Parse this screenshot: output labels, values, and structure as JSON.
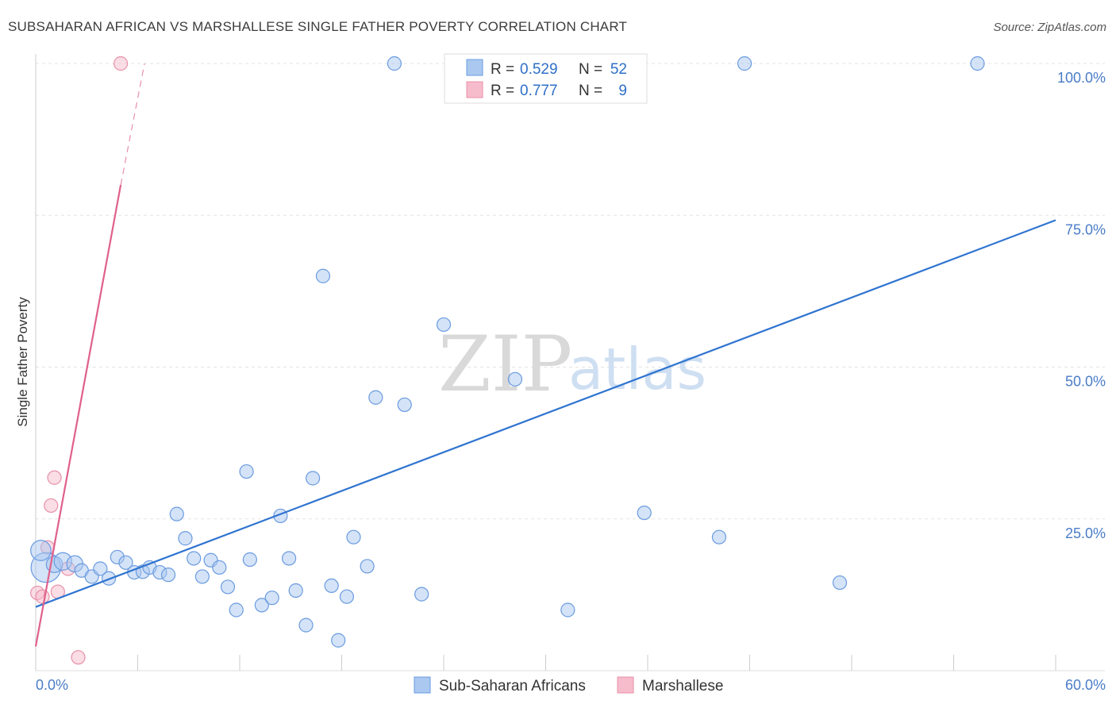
{
  "chart_data": {
    "type": "scatter",
    "title": "SUBSAHARAN AFRICAN VS MARSHALLESE SINGLE FATHER POVERTY CORRELATION CHART",
    "source": "Source: ZipAtlas.com",
    "ylabel": "Single Father Poverty",
    "xlim": [
      0,
      60
    ],
    "ylim": [
      0,
      100
    ],
    "x_tick_labels": [
      "0.0%",
      "60.0%"
    ],
    "y_ticks": [
      25,
      50,
      75,
      100
    ],
    "y_tick_labels": [
      "25.0%",
      "50.0%",
      "75.0%",
      "100.0%"
    ],
    "watermark": {
      "zip": "ZIP",
      "atlas": "atlas"
    },
    "legend": [
      {
        "name": "Sub-Saharan Africans",
        "r_label": "R =",
        "r": "0.529",
        "n_label": "N =",
        "n": "52"
      },
      {
        "name": "Marshallese",
        "r_label": "R =",
        "r": "0.777",
        "n_label": "N =",
        "n": "9"
      }
    ],
    "colors": {
      "blue_fill": "#aac8f0",
      "blue_stroke": "#6a9be0",
      "blue_line": "#2f74d0",
      "pink_fill": "#f6bccb",
      "pink_stroke": "#e890a8",
      "pink_line": "#e0608c"
    },
    "series": [
      {
        "name": "Sub-Saharan Africans",
        "points": [
          {
            "x": 0.6,
            "y": 17,
            "s": 2.2
          },
          {
            "x": 1.1,
            "y": 17.5,
            "s": 1.2
          },
          {
            "x": 1.6,
            "y": 18,
            "s": 1.3
          },
          {
            "x": 2.3,
            "y": 17.6,
            "s": 1.2
          },
          {
            "x": 2.7,
            "y": 16.5
          },
          {
            "x": 3.3,
            "y": 15.5
          },
          {
            "x": 3.8,
            "y": 16.8
          },
          {
            "x": 4.3,
            "y": 15.2
          },
          {
            "x": 4.8,
            "y": 18.7
          },
          {
            "x": 5.3,
            "y": 17.8
          },
          {
            "x": 5.8,
            "y": 16.2
          },
          {
            "x": 6.3,
            "y": 16.3
          },
          {
            "x": 6.7,
            "y": 17
          },
          {
            "x": 7.3,
            "y": 16.2
          },
          {
            "x": 7.8,
            "y": 15.8
          },
          {
            "x": 8.3,
            "y": 25.8
          },
          {
            "x": 8.8,
            "y": 21.8
          },
          {
            "x": 9.3,
            "y": 18.5
          },
          {
            "x": 9.8,
            "y": 15.5
          },
          {
            "x": 10.3,
            "y": 18.2
          },
          {
            "x": 10.8,
            "y": 17
          },
          {
            "x": 11.3,
            "y": 13.8
          },
          {
            "x": 11.8,
            "y": 10
          },
          {
            "x": 12.4,
            "y": 32.8
          },
          {
            "x": 12.6,
            "y": 18.3
          },
          {
            "x": 13.3,
            "y": 10.8
          },
          {
            "x": 13.9,
            "y": 12
          },
          {
            "x": 14.4,
            "y": 25.5
          },
          {
            "x": 14.9,
            "y": 18.5
          },
          {
            "x": 15.3,
            "y": 13.2
          },
          {
            "x": 15.9,
            "y": 7.5
          },
          {
            "x": 16.3,
            "y": 31.7
          },
          {
            "x": 16.9,
            "y": 65
          },
          {
            "x": 17.4,
            "y": 14
          },
          {
            "x": 17.8,
            "y": 5
          },
          {
            "x": 18.3,
            "y": 12.2
          },
          {
            "x": 18.7,
            "y": 22
          },
          {
            "x": 19.5,
            "y": 17.2
          },
          {
            "x": 20.0,
            "y": 45
          },
          {
            "x": 21.1,
            "y": 100
          },
          {
            "x": 21.7,
            "y": 43.8
          },
          {
            "x": 22.7,
            "y": 12.6
          },
          {
            "x": 24.0,
            "y": 57
          },
          {
            "x": 26.0,
            "y": 100
          },
          {
            "x": 28.2,
            "y": 48
          },
          {
            "x": 31.3,
            "y": 10
          },
          {
            "x": 35.8,
            "y": 26
          },
          {
            "x": 40.2,
            "y": 22
          },
          {
            "x": 41.7,
            "y": 100
          },
          {
            "x": 47.3,
            "y": 14.5
          },
          {
            "x": 55.4,
            "y": 100
          },
          {
            "x": 0.3,
            "y": 19.8,
            "s": 1.5
          }
        ]
      },
      {
        "name": "Marshallese",
        "points": [
          {
            "x": 0.1,
            "y": 12.8
          },
          {
            "x": 0.4,
            "y": 12.2
          },
          {
            "x": 0.7,
            "y": 20.3
          },
          {
            "x": 0.9,
            "y": 27.2
          },
          {
            "x": 1.1,
            "y": 31.8
          },
          {
            "x": 1.3,
            "y": 13
          },
          {
            "x": 1.9,
            "y": 16.8
          },
          {
            "x": 2.5,
            "y": 2.2
          },
          {
            "x": 5.0,
            "y": 100
          }
        ]
      }
    ],
    "trend_lines": [
      {
        "series": "Sub-Saharan Africans",
        "x1": 0,
        "y1": 10.5,
        "x2": 60,
        "y2": 74.2
      },
      {
        "series": "Marshallese",
        "x1": 0,
        "y1": 4,
        "x2": 5.0,
        "y2": 80,
        "dash_to_x": 6.4,
        "dash_to_y": 100
      }
    ]
  }
}
